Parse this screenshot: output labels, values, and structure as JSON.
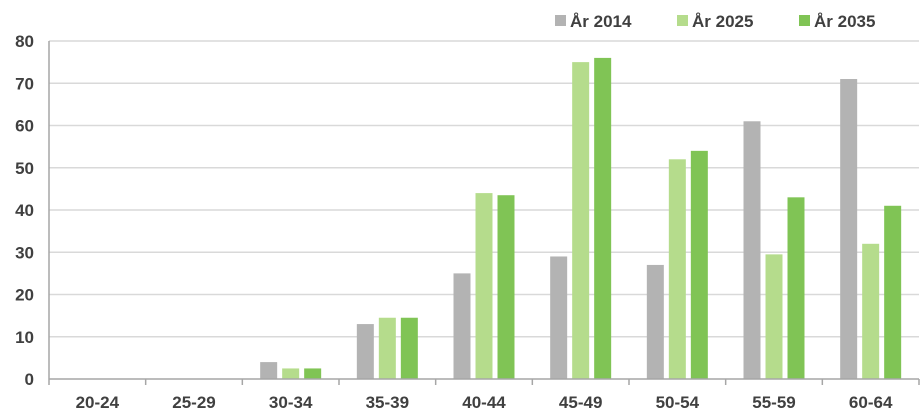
{
  "chart_data": {
    "type": "bar",
    "title": "",
    "xlabel": "",
    "ylabel": "",
    "ylim": [
      0,
      80
    ],
    "yticks": [
      0,
      10,
      20,
      30,
      40,
      50,
      60,
      70,
      80
    ],
    "categories": [
      "20-24",
      "25-29",
      "30-34",
      "35-39",
      "40-44",
      "45-49",
      "50-54",
      "55-59",
      "60-64"
    ],
    "series": [
      {
        "name": "År 2014",
        "color": "#b3b3b3",
        "values": [
          0,
          0,
          4,
          13,
          25,
          29,
          27,
          61,
          71
        ]
      },
      {
        "name": "År 2025",
        "color": "#b5dc8c",
        "values": [
          0,
          0,
          2.5,
          14.5,
          44,
          75,
          52,
          29.5,
          32
        ]
      },
      {
        "name": "År 2035",
        "color": "#80c455",
        "values": [
          0,
          0,
          2.5,
          14.5,
          43.5,
          76,
          54,
          43,
          41
        ]
      }
    ],
    "grid": true,
    "legend_position": "top-right"
  }
}
